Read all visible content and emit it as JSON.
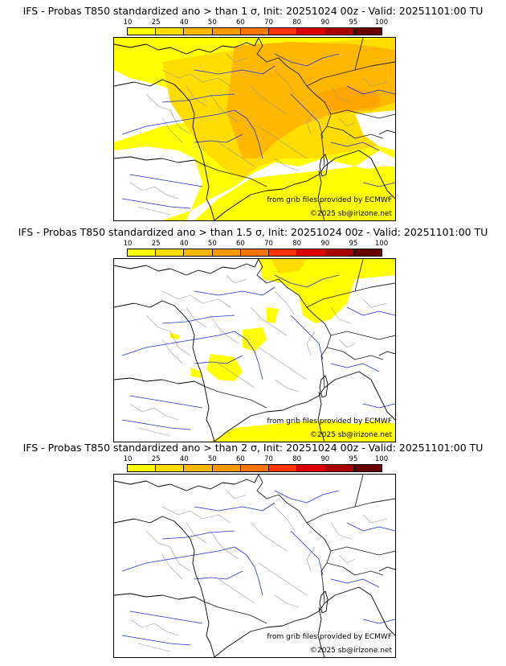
{
  "colorbar": {
    "ticks": [
      "10",
      "25",
      "40",
      "50",
      "60",
      "70",
      "80",
      "90",
      "95",
      "100"
    ],
    "colors": [
      "#ffff00",
      "#ffdd00",
      "#ffb700",
      "#ff9900",
      "#ff7700",
      "#ff3300",
      "#dd0000",
      "#aa0000",
      "#660000"
    ]
  },
  "panels": [
    {
      "title": "IFS - Probas T850  standardized ano > than 1 σ, Init: 20251024 00z - Valid: 20251101:00 TU",
      "source": "from grib files provided by ECMWF",
      "copyright": "©2025 sb@irizone.net"
    },
    {
      "title": "IFS - Probas T850  standardized ano > than 1.5 σ, Init: 20251024 00z - Valid: 20251101:00 TU",
      "source": "from grib files provided by ECMWF",
      "copyright": "©2025 sb@irizone.net"
    },
    {
      "title": "IFS - Probas T850  standardized ano > than 2 σ, Init: 20251024 00z - Valid: 20251101:00 TU",
      "source": "from grib files provided by ECMWF",
      "copyright": "©2025 sb@irizone.net"
    }
  ],
  "style": {
    "coast_color": "#000000",
    "border_color": "#222222",
    "river_color": "#2233cc",
    "admin_color": "#999999",
    "prob_yellow": "#ffff00",
    "prob_gold": "#ffdd00",
    "prob_orange": "#ffb700",
    "prob_dark_orange": "#ff9900"
  }
}
